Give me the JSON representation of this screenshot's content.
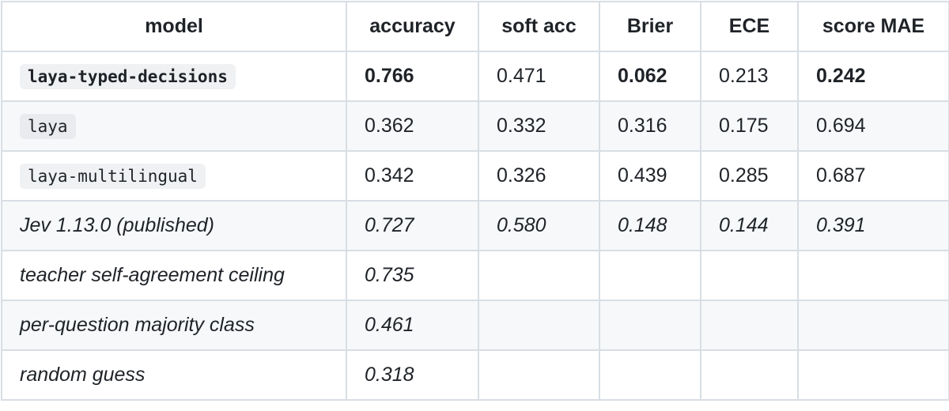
{
  "table": {
    "header": [
      "model",
      "accuracy",
      "soft acc",
      "Brier",
      "ECE",
      "score MAE"
    ],
    "rows": [
      [
        "laya-typed-decisions",
        "0.766",
        "0.471",
        "0.062",
        "0.213",
        "0.242"
      ],
      [
        "laya",
        "0.362",
        "0.332",
        "0.316",
        "0.175",
        "0.694"
      ],
      [
        "laya-multilingual",
        "0.342",
        "0.326",
        "0.439",
        "0.285",
        "0.687"
      ],
      [
        "Jev 1.13.0 (published)",
        "0.727",
        "0.580",
        "0.148",
        "0.144",
        "0.391"
      ],
      [
        "teacher self-agreement ceiling",
        "0.735"
      ],
      [
        "per-question majority class",
        "0.461"
      ],
      [
        "random guess",
        "0.318"
      ]
    ]
  }
}
